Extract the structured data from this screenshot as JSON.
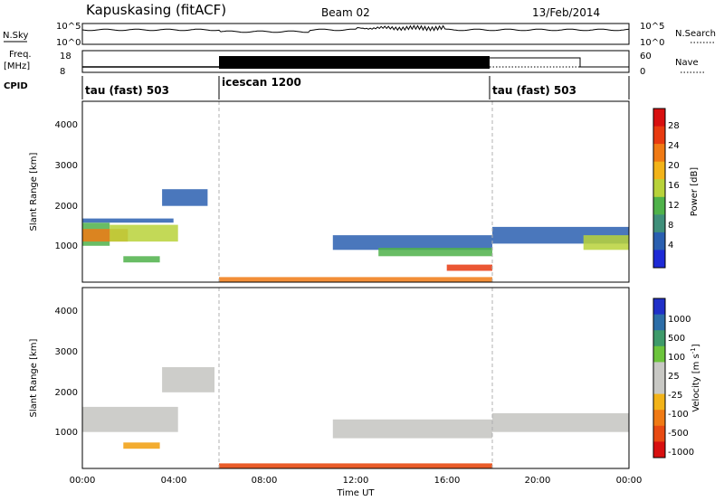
{
  "header": {
    "station": "Kapuskasing (fitACF)",
    "beam": "Beam 02",
    "date": "13/Feb/2014"
  },
  "top_panels": {
    "nsky_label": "N.Sky",
    "nsky_ticks": [
      "10^5",
      "10^0"
    ],
    "nsearch_label": "N.Search",
    "nsearch_ticks": [
      "10^5",
      "10^0"
    ],
    "freq_label": "Freq.",
    "freq_unit": "[MHz]",
    "freq_ticks": [
      "18",
      "8"
    ],
    "nave_label": "Nave",
    "nave_ticks": [
      "60",
      "0"
    ],
    "cpid_label": "CPID",
    "cpid_segments": [
      {
        "label": "tau (fast) 503",
        "start_h": 0,
        "end_h": 6
      },
      {
        "label": "icescan 1200",
        "start_h": 6,
        "end_h": 18
      },
      {
        "label": "tau (fast) 503",
        "start_h": 18,
        "end_h": 24
      }
    ]
  },
  "power_panel": {
    "ylabel": "Slant Range [km]",
    "yticks": [
      "1000",
      "2000",
      "3000",
      "4000"
    ],
    "colorbar_label": "Power [dB]",
    "colorbar_ticks": [
      "4",
      "8",
      "12",
      "16",
      "20",
      "24",
      "28"
    ],
    "colors": [
      "#1e2ad6",
      "#2a5fb0",
      "#3f8f7a",
      "#4fb24a",
      "#b8d23a",
      "#f2b319",
      "#f07a14",
      "#e83a10",
      "#d81010"
    ]
  },
  "velocity_panel": {
    "ylabel": "Slant Range [km]",
    "yticks": [
      "1000",
      "2000",
      "3000",
      "4000"
    ],
    "colorbar_label": "Velocity [m s",
    "colorbar_exp": "-1",
    "colorbar_unit_close": "]",
    "colorbar_ticks": [
      "1000",
      "500",
      "100",
      "25",
      "-25",
      "-100",
      "-500",
      "-1000"
    ],
    "colors": [
      "#2030c8",
      "#2c6ea8",
      "#3e9a6a",
      "#6cc43c",
      "#c8c8c4",
      "#c8c8c4",
      "#f2b319",
      "#f07a14",
      "#e84a12",
      "#d81010"
    ]
  },
  "xaxis": {
    "label": "Time UT",
    "ticks": [
      "00:00",
      "04:00",
      "08:00",
      "12:00",
      "16:00",
      "20:00",
      "00:00"
    ]
  },
  "chart_data": {
    "type": "heatmap",
    "title": "Kapuskasing (fitACF)",
    "x_range_hours": [
      0,
      24
    ],
    "y_range_km": [
      180,
      4500
    ],
    "mode_boundaries_hours": [
      6,
      18
    ],
    "power_bands": [
      {
        "t0": 0.0,
        "t1": 1.2,
        "r0": 1050,
        "r1": 1600,
        "db": 10
      },
      {
        "t0": 0.0,
        "t1": 2.0,
        "r0": 1150,
        "r1": 1450,
        "db": 20
      },
      {
        "t0": 0.0,
        "t1": 4.0,
        "r0": 1600,
        "r1": 1700,
        "db": 6
      },
      {
        "t0": 1.2,
        "t1": 4.2,
        "r0": 1150,
        "r1": 1550,
        "db": 16
      },
      {
        "t0": 1.8,
        "t1": 3.4,
        "r0": 650,
        "r1": 800,
        "db": 10
      },
      {
        "t0": 3.5,
        "t1": 5.5,
        "r0": 2000,
        "r1": 2400,
        "db": 6
      },
      {
        "t0": 11.0,
        "t1": 18.0,
        "r0": 950,
        "r1": 1300,
        "db": 5
      },
      {
        "t0": 13.0,
        "t1": 18.0,
        "r0": 800,
        "r1": 1000,
        "db": 12
      },
      {
        "t0": 16.0,
        "t1": 18.0,
        "r0": 450,
        "r1": 600,
        "db": 24
      },
      {
        "t0": 18.0,
        "t1": 24.0,
        "r0": 1100,
        "r1": 1500,
        "db": 5
      },
      {
        "t0": 22.0,
        "t1": 24.0,
        "r0": 950,
        "r1": 1300,
        "db": 14
      },
      {
        "t0": 6.0,
        "t1": 18.0,
        "r0": 180,
        "r1": 300,
        "db": 20
      }
    ],
    "velocity_bands": [
      {
        "t0": 0.0,
        "t1": 4.2,
        "r0": 1050,
        "r1": 1650,
        "v": 0
      },
      {
        "t0": 1.8,
        "t1": 3.4,
        "r0": 650,
        "r1": 800,
        "v": -100
      },
      {
        "t0": 3.5,
        "t1": 5.8,
        "r0": 2000,
        "r1": 2600,
        "v": 0
      },
      {
        "t0": 11.0,
        "t1": 18.0,
        "r0": 900,
        "r1": 1350,
        "v": 0
      },
      {
        "t0": 18.0,
        "t1": 24.0,
        "r0": 1050,
        "r1": 1500,
        "v": 0
      },
      {
        "t0": 6.0,
        "t1": 18.0,
        "r0": 180,
        "r1": 300,
        "v": -500
      }
    ]
  }
}
